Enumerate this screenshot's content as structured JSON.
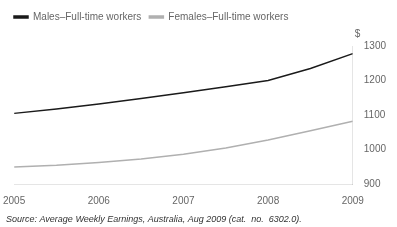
{
  "chart_data": {
    "type": "line",
    "x": [
      2005.0,
      2005.5,
      2006.0,
      2006.5,
      2007.0,
      2007.5,
      2008.0,
      2008.5,
      2009.0
    ],
    "series": [
      {
        "name": "Males–Full-time workers",
        "color": "#1a1a1a",
        "values": [
          1105,
          1118,
          1132,
          1148,
          1165,
          1182,
          1200,
          1235,
          1278
        ]
      },
      {
        "name": "Females–Full-time workers",
        "color": "#b0b0b0",
        "values": [
          950,
          955,
          963,
          973,
          987,
          1005,
          1028,
          1055,
          1082
        ]
      }
    ],
    "xlim": [
      2005,
      2009
    ],
    "xticks": [
      2005,
      2006,
      2007,
      2008,
      2009
    ],
    "ylim": [
      900,
      1300
    ],
    "yticks": [
      900,
      1000,
      1100,
      1200,
      1300
    ],
    "ylabel": "$",
    "annotations": [
      "Source: Average Weekly Earnings, Australia, Aug 2009 (cat.  no.  6302.0)."
    ],
    "grid": false,
    "legend": "upper left"
  }
}
